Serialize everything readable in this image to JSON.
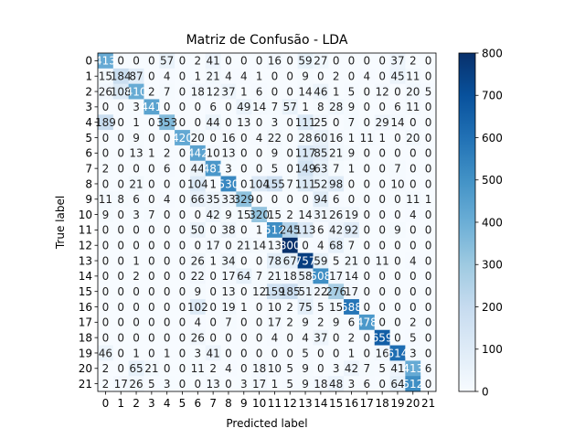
{
  "chart_data": {
    "type": "heatmap",
    "title": "Matriz de Confusão - LDA",
    "xlabel": "Predicted label",
    "ylabel": "True label",
    "x_categories": [
      "0",
      "1",
      "2",
      "3",
      "4",
      "5",
      "6",
      "7",
      "8",
      "9",
      "10",
      "11",
      "12",
      "13",
      "14",
      "15",
      "16",
      "17",
      "18",
      "19",
      "20",
      "21"
    ],
    "y_categories": [
      "0",
      "1",
      "2",
      "3",
      "4",
      "5",
      "6",
      "7",
      "8",
      "9",
      "10",
      "11",
      "12",
      "13",
      "14",
      "15",
      "16",
      "17",
      "18",
      "19",
      "20",
      "21"
    ],
    "colormap": "Blues",
    "vmin": 0,
    "vmax": 800,
    "colorbar_ticks": [
      0,
      100,
      200,
      300,
      400,
      500,
      600,
      700,
      800
    ],
    "matrix": [
      [
        413,
        0,
        0,
        0,
        57,
        0,
        2,
        41,
        0,
        0,
        0,
        16,
        0,
        59,
        27,
        0,
        0,
        0,
        0,
        37,
        2,
        0
      ],
      [
        15,
        184,
        87,
        0,
        4,
        0,
        1,
        21,
        4,
        4,
        1,
        0,
        0,
        9,
        0,
        2,
        0,
        4,
        0,
        45,
        11,
        0
      ],
      [
        26,
        108,
        410,
        2,
        7,
        0,
        18,
        12,
        37,
        1,
        6,
        0,
        0,
        14,
        46,
        1,
        5,
        0,
        12,
        0,
        20,
        5
      ],
      [
        0,
        0,
        3,
        441,
        0,
        0,
        0,
        6,
        0,
        49,
        14,
        7,
        57,
        1,
        8,
        28,
        9,
        0,
        0,
        6,
        11,
        0
      ],
      [
        189,
        0,
        1,
        0,
        353,
        0,
        0,
        44,
        0,
        13,
        0,
        3,
        0,
        111,
        25,
        0,
        7,
        0,
        29,
        14,
        0,
        0
      ],
      [
        0,
        0,
        9,
        0,
        0,
        420,
        20,
        0,
        16,
        0,
        4,
        22,
        0,
        28,
        60,
        16,
        1,
        11,
        1,
        0,
        20,
        0
      ],
      [
        0,
        0,
        13,
        1,
        2,
        0,
        442,
        10,
        13,
        0,
        0,
        9,
        0,
        117,
        85,
        21,
        9,
        0,
        0,
        0,
        0,
        0
      ],
      [
        2,
        0,
        0,
        0,
        6,
        0,
        44,
        481,
        3,
        0,
        0,
        5,
        0,
        149,
        63,
        7,
        1,
        0,
        0,
        7,
        0,
        0
      ],
      [
        0,
        0,
        21,
        0,
        0,
        0,
        104,
        1,
        530,
        0,
        104,
        155,
        7,
        111,
        52,
        98,
        0,
        0,
        0,
        10,
        0,
        0
      ],
      [
        11,
        8,
        6,
        0,
        4,
        0,
        66,
        35,
        33,
        329,
        0,
        0,
        0,
        0,
        94,
        6,
        0,
        0,
        0,
        0,
        11,
        1
      ],
      [
        9,
        0,
        3,
        7,
        0,
        0,
        0,
        42,
        9,
        15,
        320,
        15,
        2,
        14,
        31,
        26,
        19,
        0,
        0,
        0,
        4,
        0
      ],
      [
        0,
        0,
        0,
        0,
        0,
        0,
        50,
        0,
        38,
        0,
        1,
        512,
        245,
        113,
        6,
        42,
        92,
        0,
        0,
        9,
        0,
        0
      ],
      [
        0,
        0,
        0,
        0,
        0,
        0,
        0,
        17,
        0,
        21,
        14,
        13,
        800,
        0,
        4,
        68,
        7,
        0,
        0,
        0,
        0,
        0
      ],
      [
        0,
        0,
        1,
        0,
        0,
        0,
        26,
        1,
        34,
        0,
        0,
        78,
        67,
        757,
        59,
        5,
        21,
        0,
        11,
        0,
        4,
        0
      ],
      [
        0,
        0,
        2,
        0,
        0,
        0,
        22,
        0,
        17,
        64,
        7,
        21,
        18,
        58,
        508,
        17,
        14,
        0,
        0,
        0,
        0,
        0
      ],
      [
        0,
        0,
        0,
        0,
        0,
        0,
        9,
        0,
        13,
        0,
        12,
        159,
        185,
        51,
        22,
        276,
        17,
        0,
        0,
        0,
        0,
        0
      ],
      [
        0,
        0,
        0,
        0,
        0,
        0,
        102,
        0,
        19,
        1,
        0,
        10,
        2,
        75,
        5,
        15,
        588,
        0,
        0,
        0,
        0,
        0
      ],
      [
        0,
        0,
        0,
        0,
        0,
        0,
        4,
        0,
        7,
        0,
        0,
        17,
        2,
        9,
        2,
        9,
        6,
        478,
        0,
        0,
        2,
        0
      ],
      [
        0,
        0,
        0,
        0,
        0,
        0,
        26,
        0,
        0,
        0,
        0,
        4,
        0,
        4,
        37,
        0,
        2,
        0,
        659,
        0,
        5,
        0
      ],
      [
        46,
        0,
        1,
        0,
        1,
        0,
        3,
        41,
        0,
        0,
        0,
        0,
        0,
        5,
        0,
        0,
        1,
        0,
        16,
        614,
        3,
        0
      ],
      [
        2,
        0,
        65,
        21,
        0,
        0,
        11,
        2,
        4,
        0,
        18,
        10,
        5,
        9,
        0,
        3,
        42,
        7,
        5,
        41,
        413,
        6
      ],
      [
        2,
        17,
        26,
        5,
        3,
        0,
        0,
        13,
        0,
        3,
        17,
        1,
        5,
        9,
        18,
        48,
        3,
        6,
        0,
        64,
        512,
        0
      ]
    ]
  }
}
